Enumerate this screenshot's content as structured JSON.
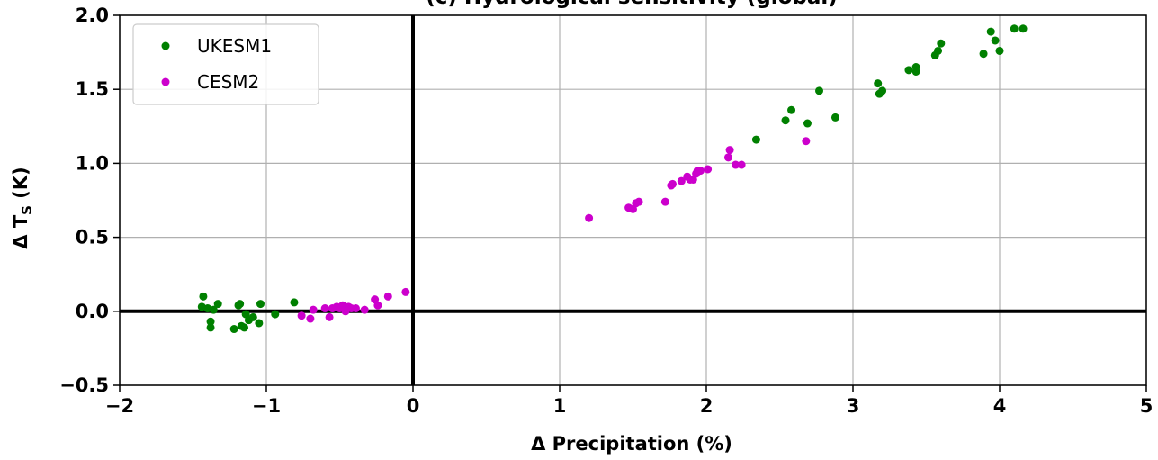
{
  "chart_data": {
    "type": "scatter",
    "title": "(c) Hydrological sensitivity (global)",
    "xlabel": "Δ Precipitation (%)",
    "ylabel": "Δ T_S (K)",
    "xlim": [
      -2,
      5
    ],
    "ylim": [
      -0.5,
      2.0
    ],
    "xticks": [
      -2,
      -1,
      0,
      1,
      2,
      3,
      4,
      5
    ],
    "yticks": [
      -0.5,
      0.0,
      0.5,
      1.0,
      1.5,
      2.0
    ],
    "xtick_labels": [
      "−2",
      "−1",
      "0",
      "1",
      "2",
      "3",
      "4",
      "5"
    ],
    "ytick_labels": [
      "−0.5",
      "0.0",
      "0.5",
      "1.0",
      "1.5",
      "2.0"
    ],
    "grid": true,
    "zero_lines": true,
    "legend_position": "top-left",
    "series": [
      {
        "name": "UKESM1",
        "color": "#008000",
        "points": [
          [
            -1.43,
            0.1
          ],
          [
            -1.44,
            0.03
          ],
          [
            -1.4,
            0.02
          ],
          [
            -1.38,
            -0.07
          ],
          [
            -1.38,
            -0.11
          ],
          [
            -1.36,
            0.01
          ],
          [
            -1.33,
            0.05
          ],
          [
            -1.22,
            -0.12
          ],
          [
            -1.19,
            0.04
          ],
          [
            -1.18,
            0.05
          ],
          [
            -1.17,
            -0.1
          ],
          [
            -1.15,
            -0.11
          ],
          [
            -1.14,
            -0.02
          ],
          [
            -1.12,
            -0.06
          ],
          [
            -1.09,
            -0.04
          ],
          [
            -1.05,
            -0.08
          ],
          [
            -1.04,
            0.05
          ],
          [
            -0.94,
            -0.02
          ],
          [
            -0.81,
            0.06
          ],
          [
            2.34,
            1.16
          ],
          [
            2.54,
            1.29
          ],
          [
            2.58,
            1.36
          ],
          [
            2.69,
            1.27
          ],
          [
            2.77,
            1.49
          ],
          [
            2.88,
            1.31
          ],
          [
            3.17,
            1.54
          ],
          [
            3.18,
            1.47
          ],
          [
            3.2,
            1.49
          ],
          [
            3.38,
            1.63
          ],
          [
            3.43,
            1.62
          ],
          [
            3.43,
            1.65
          ],
          [
            3.56,
            1.73
          ],
          [
            3.58,
            1.76
          ],
          [
            3.6,
            1.81
          ],
          [
            3.89,
            1.74
          ],
          [
            3.94,
            1.89
          ],
          [
            3.97,
            1.83
          ],
          [
            4.0,
            1.76
          ],
          [
            4.1,
            1.91
          ],
          [
            4.16,
            1.91
          ]
        ]
      },
      {
        "name": "CESM2",
        "color": "#cc00cc",
        "points": [
          [
            -0.76,
            -0.03
          ],
          [
            -0.7,
            -0.05
          ],
          [
            -0.68,
            0.01
          ],
          [
            -0.6,
            0.02
          ],
          [
            -0.57,
            -0.04
          ],
          [
            -0.55,
            0.02
          ],
          [
            -0.52,
            0.03
          ],
          [
            -0.5,
            0.02
          ],
          [
            -0.48,
            0.04
          ],
          [
            -0.46,
            0.0
          ],
          [
            -0.44,
            0.03
          ],
          [
            -0.42,
            0.02
          ],
          [
            -0.39,
            0.02
          ],
          [
            -0.33,
            0.01
          ],
          [
            -0.26,
            0.08
          ],
          [
            -0.24,
            0.04
          ],
          [
            -0.17,
            0.1
          ],
          [
            -0.05,
            0.13
          ],
          [
            1.2,
            0.63
          ],
          [
            1.47,
            0.7
          ],
          [
            1.5,
            0.69
          ],
          [
            1.52,
            0.73
          ],
          [
            1.54,
            0.74
          ],
          [
            1.72,
            0.74
          ],
          [
            1.76,
            0.85
          ],
          [
            1.77,
            0.86
          ],
          [
            1.83,
            0.88
          ],
          [
            1.87,
            0.91
          ],
          [
            1.89,
            0.89
          ],
          [
            1.91,
            0.89
          ],
          [
            1.93,
            0.93
          ],
          [
            1.94,
            0.95
          ],
          [
            1.96,
            0.95
          ],
          [
            2.01,
            0.96
          ],
          [
            2.15,
            1.04
          ],
          [
            2.16,
            1.09
          ],
          [
            2.2,
            0.99
          ],
          [
            2.24,
            0.99
          ],
          [
            2.68,
            1.15
          ]
        ]
      }
    ]
  }
}
